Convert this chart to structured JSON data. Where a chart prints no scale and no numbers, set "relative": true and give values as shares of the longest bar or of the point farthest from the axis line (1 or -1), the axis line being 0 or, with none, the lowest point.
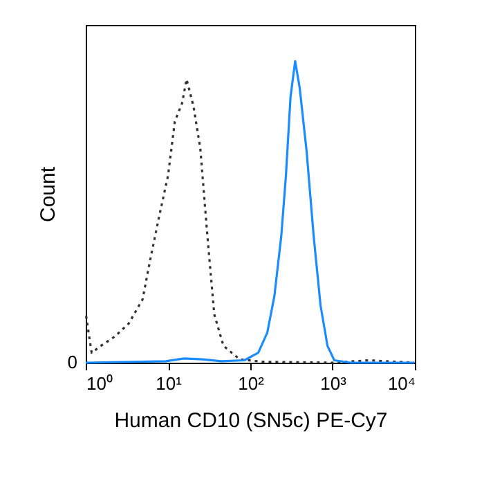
{
  "chart_data": {
    "type": "line",
    "relative": true,
    "xlabel": "Human CD10 (SN5c) PE-Cy7",
    "ylabel": "Count",
    "log": "x",
    "xlim": [
      1,
      10000
    ],
    "xticks": [
      {
        "value": 1,
        "label": "10⁰"
      },
      {
        "value": 10,
        "label": "10¹"
      },
      {
        "value": 100,
        "label": "10²"
      },
      {
        "value": 1000,
        "label": "10³"
      },
      {
        "value": 10000,
        "label": "10⁴"
      }
    ],
    "annotations": [
      "0"
    ],
    "grid": false,
    "legend": false,
    "marker": "none",
    "series": [
      {
        "color": "#333333",
        "line_style": "dotted",
        "x": [
          1.01,
          1.18,
          1.53,
          2.26,
          3.33,
          4.91,
          5.96,
          7.73,
          10,
          12.1,
          14.8,
          16.8,
          20.4,
          24.7,
          30.1,
          36.5,
          47.2,
          74.3,
          142,
          986,
          2780,
          9860
        ],
        "values": [
          0.155,
          0.033,
          0.056,
          0.087,
          0.13,
          0.21,
          0.33,
          0.48,
          0.62,
          0.8,
          0.86,
          0.94,
          0.85,
          0.71,
          0.42,
          0.16,
          0.056,
          0.011,
          0.003,
          0,
          0.008,
          0
        ]
      },
      {
        "color": "#1a8cff",
        "line_style": "solid",
        "x": [
          1,
          9.4,
          15.7,
          26.4,
          44.3,
          84.5,
          125,
          161,
          196,
          238,
          271,
          308,
          351,
          399,
          484,
          589,
          714,
          867,
          1050,
          1660,
          9860
        ],
        "values": [
          0,
          0.005,
          0.014,
          0.011,
          0.005,
          0.008,
          0.033,
          0.1,
          0.22,
          0.42,
          0.62,
          0.88,
          1,
          0.91,
          0.7,
          0.42,
          0.19,
          0.056,
          0.008,
          0,
          0
        ]
      }
    ]
  }
}
